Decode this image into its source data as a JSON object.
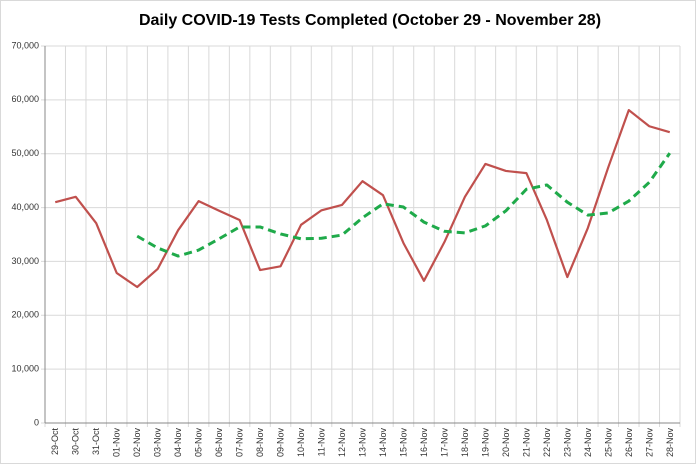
{
  "chart_data": {
    "type": "line",
    "title": "Daily COVID-19 Tests Completed (October 29 - November 28)",
    "categories": [
      "29-Oct",
      "30-Oct",
      "31-Oct",
      "01-Nov",
      "02-Nov",
      "03-Nov",
      "04-Nov",
      "05-Nov",
      "06-Nov",
      "07-Nov",
      "08-Nov",
      "09-Nov",
      "10-Nov",
      "11-Nov",
      "12-Nov",
      "13-Nov",
      "14-Nov",
      "15-Nov",
      "16-Nov",
      "17-Nov",
      "18-Nov",
      "19-Nov",
      "20-Nov",
      "21-Nov",
      "22-Nov",
      "23-Nov",
      "24-Nov",
      "25-Nov",
      "26-Nov",
      "27-Nov",
      "28-Nov"
    ],
    "series": [
      {
        "color": "#c0504d",
        "dashed": false,
        "values": [
          41000,
          42000,
          37100,
          27850,
          25250,
          28600,
          35800,
          41200,
          39400,
          37700,
          28400,
          29100,
          36800,
          39500,
          40500,
          44900,
          42300,
          33400,
          26400,
          33600,
          42000,
          48100,
          46800,
          46400,
          37700,
          27100,
          36200,
          47500,
          58100,
          55100,
          54000
        ]
      },
      {
        "color": "#1faa4a",
        "dashed": true,
        "values": [
          null,
          null,
          null,
          null,
          34700,
          32500,
          31000,
          32100,
          34200,
          36400,
          36400,
          35100,
          34200,
          34300,
          34900,
          38100,
          40700,
          40100,
          37300,
          35600,
          35300,
          36600,
          39400,
          43400,
          44200,
          41000,
          38600,
          39000,
          41200,
          44700,
          50100
        ]
      }
    ],
    "ylim": [
      0,
      70000
    ],
    "yticks": [
      0,
      {
        "value": 10000,
        "label": "10,000"
      },
      {
        "value": 20000,
        "label": "20,000"
      },
      {
        "value": 30000,
        "label": "30,000"
      },
      {
        "value": 40000,
        "label": "40,000"
      },
      {
        "value": 50000,
        "label": "50,000"
      },
      {
        "value": 60000,
        "label": "60,000"
      },
      {
        "value": 70000,
        "label": "70,000"
      }
    ],
    "grid": true
  }
}
